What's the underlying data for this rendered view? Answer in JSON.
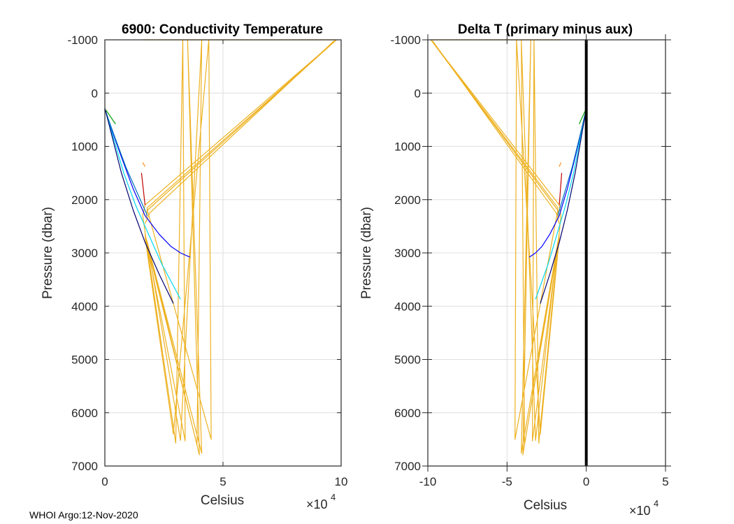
{
  "footer": "WHOI Argo:12-Nov-2020",
  "chart_data": [
    {
      "type": "line",
      "title": "6900: Conductivity Temperature",
      "xlabel": "Celsius",
      "ylabel": "Pressure (dbar)",
      "x_multiplier": "×10^4",
      "x_multiplier_base": "×10",
      "x_multiplier_exp": "4",
      "xlim": [
        0,
        10
      ],
      "ylim": [
        -1000,
        7000
      ],
      "y_reversed": true,
      "grid": true,
      "xticks": [
        0,
        5,
        10
      ],
      "xtick_labels": [
        "0",
        "5",
        "10"
      ],
      "yticks": [
        -1000,
        0,
        1000,
        2000,
        3000,
        4000,
        5000,
        6000,
        7000
      ],
      "ytick_labels": [
        "-1000",
        "0",
        "1000",
        "2000",
        "3000",
        "4000",
        "5000",
        "6000",
        "7000"
      ],
      "series": [
        {
          "name": "yellow-spikes",
          "color": "#EDB120",
          "points": [
            [
              1.6,
              -1000
            ],
            [
              9.8,
              -1000
            ],
            [
              1.7,
              2100
            ],
            [
              1.6,
              2300
            ],
            [
              3.0,
              6570
            ],
            [
              3.3,
              -1000
            ],
            [
              3.4,
              6530
            ],
            [
              1.7,
              2650
            ],
            [
              4.1,
              6760
            ],
            [
              3.5,
              -1000
            ],
            [
              4.0,
              6790
            ],
            [
              1.8,
              2800
            ],
            [
              3.2,
              6520
            ],
            [
              4.1,
              -1000
            ],
            [
              3.9,
              6600
            ],
            [
              1.7,
              2700
            ],
            [
              2.9,
              6400
            ],
            [
              4.4,
              -1000
            ],
            [
              4.5,
              6500
            ],
            [
              1.8,
              2200
            ],
            [
              9.8,
              -1000
            ]
          ]
        },
        {
          "name": "yellow-diagonal-a",
          "color": "#EDB120",
          "points": [
            [
              9.8,
              -1000
            ],
            [
              1.8,
              2150
            ],
            [
              1.75,
              2350
            ]
          ]
        },
        {
          "name": "yellow-diagonal-b",
          "color": "#EDB120",
          "points": [
            [
              9.7,
              -980
            ],
            [
              1.9,
              2250
            ],
            [
              1.7,
              2450
            ]
          ]
        },
        {
          "name": "blue",
          "color": "#0000FF",
          "points": [
            [
              0.0,
              300
            ],
            [
              0.3,
              700
            ],
            [
              0.7,
              1200
            ],
            [
              1.2,
              1800
            ],
            [
              1.7,
              2300
            ],
            [
              2.3,
              2650
            ],
            [
              2.8,
              2880
            ],
            [
              3.2,
              3000
            ],
            [
              3.6,
              3080
            ]
          ]
        },
        {
          "name": "light-blue",
          "color": "#0072BD",
          "points": [
            [
              0.0,
              300
            ],
            [
              0.4,
              800
            ],
            [
              0.9,
              1400
            ],
            [
              1.5,
              2000
            ],
            [
              1.8,
              2300
            ]
          ]
        },
        {
          "name": "cyan",
          "color": "#00D8F0",
          "points": [
            [
              0.0,
              300
            ],
            [
              0.4,
              900
            ],
            [
              0.8,
              1500
            ],
            [
              1.3,
              2100
            ],
            [
              1.8,
              2600
            ],
            [
              2.4,
              3200
            ],
            [
              3.0,
              3700
            ],
            [
              3.2,
              3870
            ]
          ]
        },
        {
          "name": "navy",
          "color": "#00006E",
          "points": [
            [
              0.0,
              280
            ],
            [
              0.3,
              800
            ],
            [
              0.7,
              1500
            ],
            [
              1.2,
              2200
            ],
            [
              1.7,
              2800
            ],
            [
              2.3,
              3400
            ],
            [
              2.9,
              3950
            ]
          ]
        },
        {
          "name": "green",
          "color": "#00A000",
          "points": [
            [
              0.05,
              320
            ],
            [
              0.45,
              580
            ]
          ]
        },
        {
          "name": "red",
          "color": "#C00000",
          "points": [
            [
              1.55,
              1500
            ],
            [
              1.7,
              2100
            ]
          ]
        },
        {
          "name": "orange",
          "color": "#FF8C1A",
          "points": [
            [
              1.6,
              1300
            ],
            [
              1.7,
              1380
            ]
          ]
        }
      ]
    },
    {
      "type": "line",
      "title": "Delta T (primary minus aux)",
      "xlabel": "Celsius",
      "ylabel": "Pressure (dbar)",
      "x_multiplier": "×10^4",
      "x_multiplier_base": "×10",
      "x_multiplier_exp": "4",
      "xlim": [
        -10,
        5
      ],
      "ylim": [
        -1000,
        7000
      ],
      "y_reversed": true,
      "grid": true,
      "xticks": [
        -10,
        -5,
        0,
        5
      ],
      "xtick_labels": [
        "-10",
        "-5",
        "0",
        "5"
      ],
      "yticks": [
        -1000,
        0,
        1000,
        2000,
        3000,
        4000,
        5000,
        6000,
        7000
      ],
      "ytick_labels": [
        "-1000",
        "0",
        "1000",
        "2000",
        "3000",
        "4000",
        "5000",
        "6000",
        "7000"
      ],
      "zero_line": {
        "x": 0,
        "color": "#000000"
      },
      "series": [
        {
          "name": "yellow-spikes",
          "color": "#EDB120",
          "points": [
            [
              -1.6,
              -1000
            ],
            [
              -9.8,
              -1000
            ],
            [
              -1.7,
              2100
            ],
            [
              -1.6,
              2300
            ],
            [
              -3.0,
              6570
            ],
            [
              -3.3,
              -1000
            ],
            [
              -3.4,
              6530
            ],
            [
              -1.7,
              2650
            ],
            [
              -4.1,
              6760
            ],
            [
              -3.5,
              -1000
            ],
            [
              -4.0,
              6790
            ],
            [
              -1.8,
              2800
            ],
            [
              -3.2,
              6520
            ],
            [
              -4.1,
              -1000
            ],
            [
              -3.9,
              6600
            ],
            [
              -1.7,
              2700
            ],
            [
              -2.9,
              6400
            ],
            [
              -4.4,
              -1000
            ],
            [
              -4.5,
              6500
            ],
            [
              -1.8,
              2200
            ],
            [
              -9.8,
              -1000
            ]
          ]
        },
        {
          "name": "yellow-diagonal-a",
          "color": "#EDB120",
          "points": [
            [
              -9.8,
              -1000
            ],
            [
              -1.8,
              2150
            ],
            [
              -1.75,
              2350
            ]
          ]
        },
        {
          "name": "yellow-diagonal-b",
          "color": "#EDB120",
          "points": [
            [
              -9.7,
              -980
            ],
            [
              -1.9,
              2250
            ],
            [
              -1.7,
              2450
            ]
          ]
        },
        {
          "name": "blue",
          "color": "#0000FF",
          "points": [
            [
              0.0,
              300
            ],
            [
              -0.3,
              700
            ],
            [
              -0.7,
              1200
            ],
            [
              -1.2,
              1800
            ],
            [
              -1.7,
              2300
            ],
            [
              -2.3,
              2650
            ],
            [
              -2.8,
              2880
            ],
            [
              -3.2,
              3000
            ],
            [
              -3.6,
              3080
            ]
          ]
        },
        {
          "name": "light-blue",
          "color": "#0072BD",
          "points": [
            [
              0.0,
              300
            ],
            [
              -0.4,
              800
            ],
            [
              -0.9,
              1400
            ],
            [
              -1.5,
              2000
            ],
            [
              -1.8,
              2300
            ]
          ]
        },
        {
          "name": "cyan",
          "color": "#00D8F0",
          "points": [
            [
              0.0,
              300
            ],
            [
              -0.4,
              900
            ],
            [
              -0.8,
              1500
            ],
            [
              -1.3,
              2100
            ],
            [
              -1.8,
              2600
            ],
            [
              -2.4,
              3200
            ],
            [
              -3.0,
              3700
            ],
            [
              -3.2,
              3870
            ]
          ]
        },
        {
          "name": "navy",
          "color": "#00006E",
          "points": [
            [
              0.0,
              280
            ],
            [
              -0.3,
              800
            ],
            [
              -0.7,
              1500
            ],
            [
              -1.2,
              2200
            ],
            [
              -1.7,
              2800
            ],
            [
              -2.3,
              3400
            ],
            [
              -2.9,
              3950
            ]
          ]
        },
        {
          "name": "green",
          "color": "#00A000",
          "points": [
            [
              -0.05,
              320
            ],
            [
              -0.45,
              580
            ]
          ]
        },
        {
          "name": "red",
          "color": "#C00000",
          "points": [
            [
              -1.55,
              1500
            ],
            [
              -1.7,
              2100
            ]
          ]
        },
        {
          "name": "orange",
          "color": "#FF8C1A",
          "points": [
            [
              -1.6,
              1300
            ],
            [
              -1.7,
              1380
            ]
          ]
        }
      ]
    }
  ]
}
